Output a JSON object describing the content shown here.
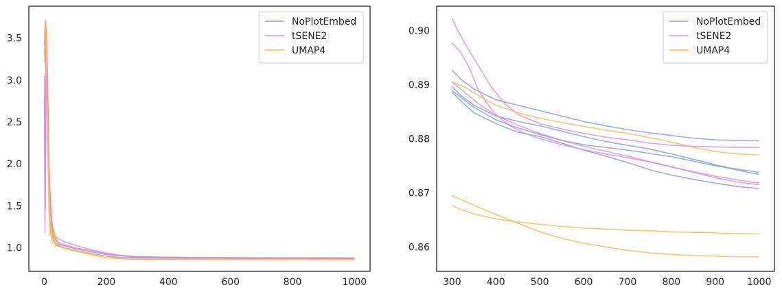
{
  "chart_data": [
    {
      "type": "line",
      "title": "",
      "xlabel": "",
      "ylabel": "",
      "xlim": [
        -50,
        1050
      ],
      "ylim": [
        0.72,
        3.88
      ],
      "xticks": [
        0,
        200,
        400,
        600,
        800,
        1000
      ],
      "yticks": [
        1.0,
        1.5,
        2.0,
        2.5,
        3.0,
        3.5
      ],
      "xtick_labels": [
        "0",
        "200",
        "400",
        "600",
        "800",
        "1000"
      ],
      "ytick_labels": [
        "1.0",
        "1.5",
        "2.0",
        "2.5",
        "3.0",
        "3.5"
      ],
      "grid": false,
      "legend": {
        "position": "top-right",
        "entries": [
          "NoPlotEmbed",
          "tSENE2",
          "UMAP4"
        ]
      },
      "colors": {
        "NoPlotEmbed": "#7b96dc",
        "tSENE2": "#dc86dc",
        "UMAP4": "#ffb347"
      },
      "series": [
        {
          "name": "NoPlotEmbed",
          "x": [
            0,
            3,
            6,
            10,
            15,
            20,
            25,
            30,
            40,
            60,
            100,
            150,
            200,
            250,
            300,
            400,
            500,
            600,
            700,
            800,
            900,
            1000
          ],
          "y": [
            3.42,
            3.62,
            3.25,
            2.6,
            1.95,
            1.45,
            1.2,
            1.08,
            1.03,
            1.0,
            0.97,
            0.93,
            0.9,
            0.885,
            0.88,
            0.878,
            0.876,
            0.875,
            0.874,
            0.873,
            0.872,
            0.871
          ]
        },
        {
          "name": "NoPlotEmbed",
          "x": [
            0,
            4,
            8,
            12,
            18,
            25,
            35,
            50,
            100,
            200,
            300,
            500,
            700,
            1000
          ],
          "y": [
            3.3,
            3.55,
            3.0,
            2.2,
            1.6,
            1.25,
            1.1,
            1.04,
            0.99,
            0.92,
            0.89,
            0.884,
            0.881,
            0.88
          ]
        },
        {
          "name": "tSENE2",
          "x": [
            0,
            2,
            5,
            8,
            12,
            16,
            20,
            25,
            30,
            40,
            60,
            100,
            150,
            200,
            250,
            300,
            400,
            500,
            600,
            700,
            800,
            900,
            1000
          ],
          "y": [
            2.8,
            1.18,
            3.7,
            3.2,
            2.5,
            1.8,
            1.5,
            1.3,
            1.17,
            1.12,
            1.08,
            1.03,
            0.98,
            0.94,
            0.905,
            0.895,
            0.889,
            0.884,
            0.881,
            0.879,
            0.878,
            0.877,
            0.876
          ]
        },
        {
          "name": "tSENE2",
          "x": [
            0,
            3,
            7,
            11,
            15,
            20,
            30,
            45,
            100,
            200,
            300,
            500,
            700,
            1000
          ],
          "y": [
            3.05,
            1.45,
            3.6,
            2.9,
            2.0,
            1.4,
            1.15,
            1.06,
            1.0,
            0.93,
            0.89,
            0.884,
            0.88,
            0.872
          ]
        },
        {
          "name": "UMAP4",
          "x": [
            0,
            3,
            6,
            9,
            12,
            15,
            18,
            22,
            26,
            30,
            35,
            40,
            60,
            100,
            150,
            200,
            250,
            300,
            400,
            500,
            600,
            800,
            1000
          ],
          "y": [
            3.5,
            3.72,
            3.4,
            2.7,
            2.0,
            1.45,
            1.15,
            1.3,
            1.05,
            1.2,
            1.02,
            1.05,
            1.0,
            0.96,
            0.92,
            0.88,
            0.87,
            0.868,
            0.866,
            0.865,
            0.864,
            0.863,
            0.862
          ]
        },
        {
          "name": "UMAP4",
          "x": [
            0,
            4,
            8,
            12,
            16,
            20,
            25,
            30,
            40,
            60,
            100,
            200,
            250,
            300,
            500,
            700,
            1000
          ],
          "y": [
            3.2,
            3.65,
            3.1,
            2.3,
            1.6,
            1.2,
            1.1,
            1.22,
            1.04,
            1.01,
            0.97,
            0.9,
            0.87,
            0.866,
            0.862,
            0.86,
            0.858
          ]
        }
      ]
    },
    {
      "type": "line",
      "title": "",
      "xlabel": "",
      "ylabel": "",
      "xlim": [
        265,
        1035
      ],
      "ylim": [
        0.8555,
        0.9045
      ],
      "xticks": [
        300,
        400,
        500,
        600,
        700,
        800,
        900,
        1000
      ],
      "yticks": [
        0.86,
        0.87,
        0.88,
        0.89,
        0.9
      ],
      "xtick_labels": [
        "300",
        "400",
        "500",
        "600",
        "700",
        "800",
        "900",
        "1000"
      ],
      "ytick_labels": [
        "0.86",
        "0.87",
        "0.88",
        "0.89",
        "0.90"
      ],
      "grid": false,
      "legend": {
        "position": "top-right",
        "entries": [
          "NoPlotEmbed",
          "tSENE2",
          "UMAP4"
        ]
      },
      "colors": {
        "NoPlotEmbed": "#7b96dc",
        "tSENE2": "#dc86dc",
        "UMAP4": "#ffb347"
      },
      "series": [
        {
          "name": "NoPlotEmbed",
          "x": [
            300,
            320,
            350,
            400,
            450,
            500,
            550,
            600,
            650,
            700,
            750,
            800,
            850,
            900,
            950,
            1000
          ],
          "y": [
            0.8927,
            0.891,
            0.8892,
            0.8872,
            0.8862,
            0.8852,
            0.8842,
            0.8832,
            0.8824,
            0.8817,
            0.8811,
            0.8806,
            0.8801,
            0.8798,
            0.8797,
            0.8796
          ]
        },
        {
          "name": "NoPlotEmbed",
          "x": [
            300,
            320,
            350,
            400,
            450,
            500,
            550,
            600,
            650,
            700,
            750,
            800,
            850,
            900,
            950,
            1000
          ],
          "y": [
            0.8897,
            0.888,
            0.8862,
            0.8842,
            0.8832,
            0.8824,
            0.8814,
            0.8804,
            0.8795,
            0.8788,
            0.8781,
            0.8772,
            0.8762,
            0.8752,
            0.8742,
            0.8734
          ]
        },
        {
          "name": "NoPlotEmbed",
          "x": [
            300,
            320,
            350,
            400,
            450,
            500,
            550,
            600,
            650,
            700,
            750,
            800,
            850,
            900,
            950,
            1000
          ],
          "y": [
            0.8886,
            0.887,
            0.8848,
            0.8828,
            0.8812,
            0.8804,
            0.8792,
            0.8779,
            0.8768,
            0.8756,
            0.8743,
            0.8733,
            0.8725,
            0.8718,
            0.8712,
            0.8708
          ]
        },
        {
          "name": "NoPlotEmbed",
          "x": [
            300,
            350,
            400,
            450,
            500,
            550,
            600,
            700,
            800,
            900,
            1000
          ],
          "y": [
            0.8889,
            0.8858,
            0.8835,
            0.882,
            0.8808,
            0.8797,
            0.8789,
            0.8779,
            0.8767,
            0.875,
            0.8738
          ]
        },
        {
          "name": "tSENE2",
          "x": [
            300,
            310,
            330,
            360,
            390,
            420,
            450,
            500,
            550,
            600,
            650,
            700,
            750,
            800,
            850,
            900,
            950,
            1000
          ],
          "y": [
            0.9023,
            0.9005,
            0.8975,
            0.8935,
            0.8895,
            0.8865,
            0.8845,
            0.8828,
            0.8818,
            0.881,
            0.8803,
            0.8798,
            0.8792,
            0.8788,
            0.8786,
            0.8785,
            0.8784,
            0.8784
          ]
        },
        {
          "name": "tSENE2",
          "x": [
            300,
            320,
            340,
            360,
            380,
            400,
            430,
            460,
            500,
            550,
            600,
            650,
            700,
            750,
            800,
            850,
            900,
            950,
            1000
          ],
          "y": [
            0.8977,
            0.896,
            0.893,
            0.889,
            0.8865,
            0.8845,
            0.8825,
            0.8812,
            0.88,
            0.8789,
            0.878,
            0.8772,
            0.8765,
            0.8757,
            0.8748,
            0.8738,
            0.8728,
            0.872,
            0.8715
          ]
        },
        {
          "name": "tSENE2",
          "x": [
            300,
            330,
            360,
            400,
            450,
            500,
            550,
            600,
            650,
            700,
            750,
            800,
            850,
            900,
            950,
            1000
          ],
          "y": [
            0.8905,
            0.8885,
            0.8865,
            0.8843,
            0.8825,
            0.881,
            0.8797,
            0.8786,
            0.8777,
            0.8768,
            0.8758,
            0.8748,
            0.8739,
            0.8731,
            0.8724,
            0.8718
          ]
        },
        {
          "name": "UMAP4",
          "x": [
            300,
            330,
            360,
            400,
            450,
            500,
            550,
            600,
            650,
            700,
            750,
            800,
            850,
            900,
            950,
            1000
          ],
          "y": [
            0.8905,
            0.8895,
            0.888,
            0.8862,
            0.8848,
            0.8838,
            0.883,
            0.8823,
            0.8816,
            0.881,
            0.8802,
            0.8794,
            0.8784,
            0.8776,
            0.8772,
            0.877
          ]
        },
        {
          "name": "UMAP4",
          "x": [
            300,
            320,
            350,
            400,
            450,
            500,
            550,
            600,
            650,
            700,
            750,
            800,
            850,
            900,
            950,
            1000
          ],
          "y": [
            0.8695,
            0.8688,
            0.8677,
            0.866,
            0.8644,
            0.8628,
            0.8616,
            0.8607,
            0.86,
            0.8594,
            0.8589,
            0.8586,
            0.8584,
            0.8583,
            0.8582,
            0.8582
          ]
        },
        {
          "name": "UMAP4",
          "x": [
            300,
            320,
            350,
            400,
            450,
            500,
            550,
            600,
            650,
            700,
            750,
            800,
            850,
            900,
            950,
            1000
          ],
          "y": [
            0.8677,
            0.8669,
            0.8661,
            0.8652,
            0.8646,
            0.8642,
            0.8638,
            0.8635,
            0.8633,
            0.8631,
            0.863,
            0.8628,
            0.8627,
            0.8626,
            0.8625,
            0.8624
          ]
        }
      ]
    }
  ]
}
